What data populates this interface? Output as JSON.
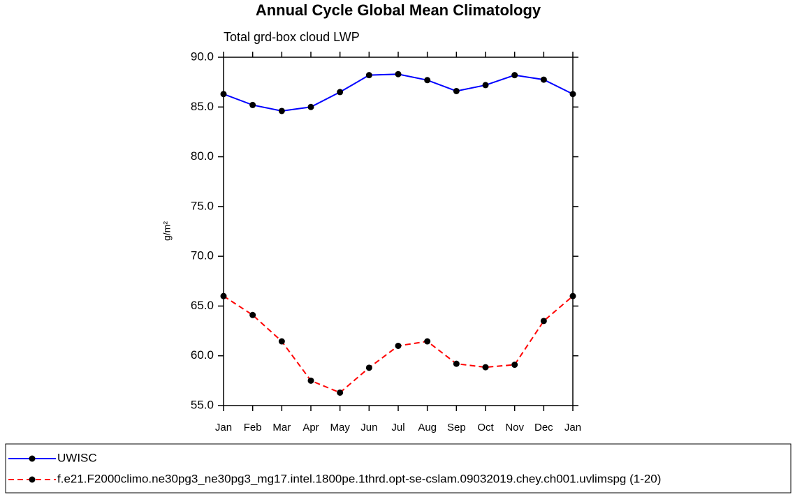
{
  "chart_data": {
    "type": "line",
    "title": "Annual Cycle Global Mean Climatology",
    "subtitle": "Total grd-box cloud LWP",
    "y_label": "g/m²",
    "categories": [
      "Jan",
      "Feb",
      "Mar",
      "Apr",
      "May",
      "Jun",
      "Jul",
      "Aug",
      "Sep",
      "Oct",
      "Nov",
      "Dec",
      "Jan"
    ],
    "series": [
      {
        "name": "UWISC",
        "color": "#0000ff",
        "dash": false,
        "values": [
          86.3,
          85.2,
          84.6,
          85.0,
          86.5,
          88.2,
          88.3,
          87.7,
          86.6,
          87.2,
          88.2,
          87.75,
          86.3
        ]
      },
      {
        "name": "f.e21.F2000climo.ne30pg3_ne30pg3_mg17.intel.1800pe.1thrd.opt-se-cslam.09032019.chey.ch001.uvlimspg (1-20)",
        "color": "#ff0000",
        "dash": true,
        "values": [
          66.0,
          64.1,
          61.45,
          57.5,
          56.3,
          58.8,
          61.0,
          61.45,
          59.2,
          58.85,
          59.1,
          63.5,
          66.0
        ]
      }
    ],
    "ylim": [
      55,
      90
    ],
    "yticks": [
      {
        "value": 55,
        "label": "55.0"
      },
      {
        "value": 60,
        "label": "60.0"
      },
      {
        "value": 65,
        "label": "65.0"
      },
      {
        "value": 70,
        "label": "70.0"
      },
      {
        "value": 75,
        "label": "75.0"
      },
      {
        "value": 80,
        "label": "80.0"
      },
      {
        "value": 85,
        "label": "85.0"
      },
      {
        "value": 90,
        "label": "90.0"
      }
    ]
  }
}
